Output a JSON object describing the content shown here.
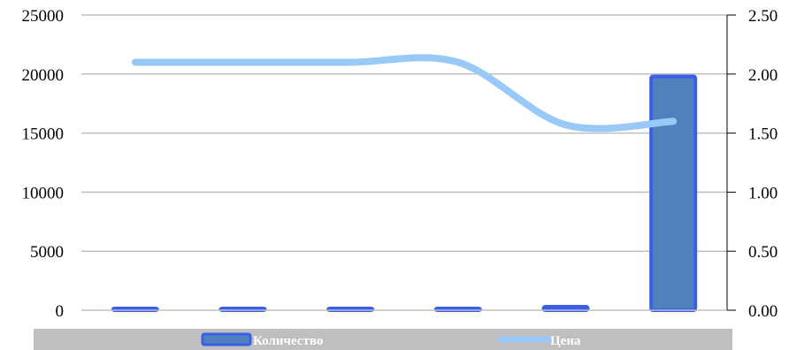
{
  "chart_data": {
    "type": "bar",
    "categories": [
      "",
      "",
      "",
      "",
      "",
      ""
    ],
    "series": [
      {
        "name": "Количество",
        "type": "bar",
        "axis": "left",
        "values": [
          80,
          80,
          80,
          80,
          300,
          19800
        ],
        "color": "#3a5ee8",
        "fill": "#4f81bd"
      },
      {
        "name": "Цена",
        "type": "line",
        "axis": "right",
        "smooth": true,
        "values": [
          2.1,
          2.1,
          2.1,
          2.1,
          1.57,
          1.6
        ],
        "color": "#99c9f7"
      }
    ],
    "y_left": {
      "min": 0,
      "max": 25000,
      "ticks": [
        "0",
        "5000",
        "10000",
        "15000",
        "20000",
        "25000"
      ]
    },
    "y_right": {
      "min": 0,
      "max": 2.5,
      "ticks": [
        "0.00",
        "0.50",
        "1.00",
        "1.50",
        "2.00",
        "2.50"
      ]
    },
    "grid": true,
    "legend": {
      "position": "bottom",
      "background": "#bfbfbf"
    }
  }
}
